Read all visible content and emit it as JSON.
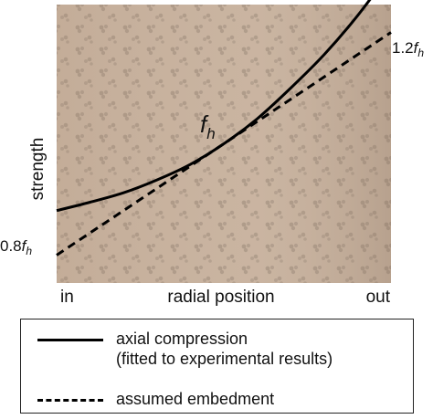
{
  "chart_data": {
    "type": "line",
    "title": "",
    "xlabel": "radial position",
    "ylabel": "strength",
    "x_tick_labels": {
      "start": "in",
      "end": "out"
    },
    "xlim": [
      0,
      1
    ],
    "ylim": [
      0.75,
      1.25
    ],
    "series": [
      {
        "name": "axial compression",
        "style": "solid",
        "color": "#000000",
        "x": [
          0,
          0.1,
          0.2,
          0.3,
          0.4,
          0.5,
          0.6,
          0.7,
          0.8,
          0.9,
          1.0
        ],
        "y": [
          0.88,
          0.895,
          0.912,
          0.935,
          0.963,
          1.0,
          1.045,
          1.1,
          1.16,
          1.23,
          1.31
        ]
      },
      {
        "name": "assumed embedment",
        "style": "dashed",
        "color": "#000000",
        "x": [
          0,
          1
        ],
        "y": [
          0.8,
          1.2
        ]
      }
    ],
    "annotations": {
      "fh_label": {
        "base": "f",
        "sub": "h"
      },
      "low_label": {
        "coef": "0.8",
        "base": "f",
        "sub": "h"
      },
      "high_label": {
        "coef": "1.2",
        "base": "f",
        "sub": "h"
      }
    },
    "legend": {
      "placement": "bottom",
      "entries": [
        {
          "style": "solid",
          "line1": "axial compression",
          "line2": "(fitted to experimental results)"
        },
        {
          "style": "dashed",
          "line1": "assumed embedment"
        }
      ]
    },
    "background_color": "#c9b3a0",
    "grid": false
  }
}
